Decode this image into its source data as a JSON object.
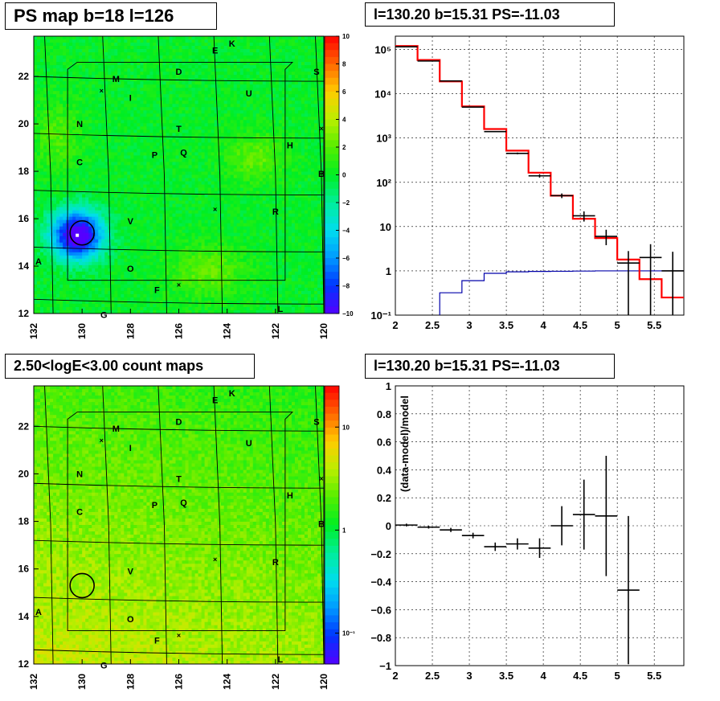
{
  "panels": {
    "ps_map": {
      "title": "PS map b=18 l=126",
      "xlim": [
        132,
        120
      ],
      "ylim": [
        12,
        23.7
      ],
      "x_ticks": [
        "132",
        "130",
        "128",
        "126",
        "124",
        "122",
        "120"
      ],
      "y_ticks": [
        "12",
        "14",
        "16",
        "18",
        "20",
        "22"
      ],
      "colorbar": {
        "ticks": [
          "10",
          "8",
          "6",
          "4",
          "2",
          "0",
          "−2",
          "−4",
          "−6",
          "−8",
          "−10"
        ],
        "range": [
          -10,
          10
        ],
        "palette": [
          "#5500ff",
          "#0033ff",
          "#0099ff",
          "#00ddee",
          "#00ee99",
          "#00ee22",
          "#55ee00",
          "#bbee00",
          "#ffcc00",
          "#ff6600",
          "#ff0000"
        ]
      },
      "source_circle": {
        "l": 130.0,
        "b": 15.4
      },
      "source_value": -11.03
    },
    "count_map": {
      "title": "2.50<logE<3.00 count maps",
      "xlim": [
        132,
        120
      ],
      "ylim": [
        12,
        23.7
      ],
      "x_ticks": [
        "132",
        "130",
        "128",
        "126",
        "124",
        "122",
        "120"
      ],
      "y_ticks": [
        "12",
        "14",
        "16",
        "18",
        "20",
        "22"
      ],
      "colorbar": {
        "ticks": [
          "10",
          "1",
          "10⁻¹"
        ],
        "log_range": [
          -1.3,
          1.4
        ],
        "palette": [
          "#5500ff",
          "#0033ff",
          "#0099ff",
          "#00ddee",
          "#00ee99",
          "#00ee22",
          "#55ee00",
          "#bbee00",
          "#ffcc00",
          "#ff6600",
          "#ff0000"
        ]
      },
      "source_circle": {
        "l": 130.0,
        "b": 15.3
      }
    },
    "spectrum": {
      "title": "l=130.20 b=15.31 PS=-11.03",
      "x_ticks": [
        "2",
        "2.5",
        "3",
        "3.5",
        "4",
        "4.5",
        "5",
        "5.5"
      ],
      "y_ticks": [
        "10⁻¹",
        "1",
        "10",
        "10²",
        "10³",
        "10⁴",
        "10⁵"
      ]
    },
    "residual": {
      "title": "l=130.20 b=15.31 PS=-11.03",
      "ylabel": "(data-model)/model",
      "x_ticks": [
        "2",
        "2.5",
        "3",
        "3.5",
        "4",
        "4.5",
        "5",
        "5.5"
      ],
      "y_ticks": [
        "1",
        "0.8",
        "0.6",
        "0.4",
        "0.2",
        "0",
        "−0.2",
        "−0.4",
        "−0.6",
        "−0.8",
        "−1"
      ]
    }
  },
  "sky_labels": [
    {
      "t": "K",
      "l": 123.8,
      "b": 23.4
    },
    {
      "t": "E",
      "l": 124.5,
      "b": 23.1
    },
    {
      "t": "S",
      "l": 120.3,
      "b": 22.2
    },
    {
      "t": "D",
      "l": 126.0,
      "b": 22.2
    },
    {
      "t": "M",
      "l": 128.6,
      "b": 21.9
    },
    {
      "t": "U",
      "l": 123.1,
      "b": 21.3
    },
    {
      "t": "I",
      "l": 128.0,
      "b": 21.1
    },
    {
      "t": "N",
      "l": 130.1,
      "b": 20.0
    },
    {
      "t": "T",
      "l": 126.0,
      "b": 19.8
    },
    {
      "t": "H",
      "l": 121.4,
      "b": 19.1
    },
    {
      "t": "P",
      "l": 127.0,
      "b": 18.7
    },
    {
      "t": "Q",
      "l": 125.8,
      "b": 18.8
    },
    {
      "t": "C",
      "l": 130.1,
      "b": 18.4
    },
    {
      "t": "B",
      "l": 120.1,
      "b": 17.9
    },
    {
      "t": "R",
      "l": 122.0,
      "b": 16.3
    },
    {
      "t": "V",
      "l": 128.0,
      "b": 15.9
    },
    {
      "t": "A",
      "l": 131.8,
      "b": 14.2
    },
    {
      "t": "O",
      "l": 128.0,
      "b": 13.9
    },
    {
      "t": "F",
      "l": 126.9,
      "b": 13.0
    },
    {
      "t": "L",
      "l": 121.8,
      "b": 12.2
    },
    {
      "t": "G",
      "l": 129.1,
      "b": 11.95
    }
  ],
  "sky_crosses": [
    {
      "l": 129.2,
      "b": 21.4
    },
    {
      "l": 124.5,
      "b": 16.4
    },
    {
      "l": 126.0,
      "b": 13.2
    },
    {
      "l": 120.1,
      "b": 19.8
    }
  ],
  "chart_data": [
    {
      "type": "heatmap",
      "title": "PS map b=18 l=126",
      "xlim": [
        132,
        120
      ],
      "ylim": [
        12,
        23.7
      ],
      "zlim": [
        -10,
        10
      ],
      "features": [
        {
          "l": 130.2,
          "b": 15.31,
          "value": -11.03
        },
        {
          "l": 124.8,
          "b": 13.8,
          "value": 2.5
        },
        {
          "l": 123.0,
          "b": 18.5,
          "value": 2.5
        },
        {
          "l": 131.0,
          "b": 19.5,
          "value": 2.0
        }
      ],
      "background_value": 0
    },
    {
      "type": "heatmap",
      "title": "2.50<logE<3.00 count maps",
      "xlim": [
        132,
        120
      ],
      "ylim": [
        12,
        23.7
      ],
      "zlim_log10": [
        -1.3,
        1.4
      ],
      "trend": "counts increase toward lower b and higher l"
    },
    {
      "type": "line",
      "title": "l=130.20 b=15.31 PS=-11.03",
      "xlim": [
        2,
        5.9
      ],
      "ylim": [
        0.1,
        200000
      ],
      "yscale": "log",
      "grid": true,
      "series": [
        {
          "color": "#ff0000",
          "bin_edges": [
            2.0,
            2.3,
            2.6,
            2.9,
            3.2,
            3.5,
            3.8,
            4.1,
            4.4,
            4.7,
            5.0,
            5.3,
            5.6,
            5.9
          ],
          "values": [
            120000,
            58000,
            19000,
            5200,
            1600,
            520,
            165,
            50,
            15,
            5.5,
            1.8,
            0.65,
            0.25
          ]
        },
        {
          "color": "#0000aa",
          "bin_edges": [
            2.6,
            2.9,
            3.2,
            3.5,
            3.8,
            4.1,
            4.4,
            4.7,
            5.0,
            5.3,
            5.6,
            5.9
          ],
          "values": [
            0.32,
            0.6,
            0.88,
            0.95,
            0.97,
            0.98,
            0.99,
            1.0,
            1.0,
            1.0,
            1.0
          ]
        },
        {
          "color": "#000000",
          "x": [
            2.15,
            2.45,
            2.75,
            3.05,
            3.35,
            3.65,
            3.95,
            4.25,
            4.55,
            4.85,
            5.15,
            5.45,
            5.75
          ],
          "y": [
            115000,
            55000,
            19500,
            5000,
            1400,
            450,
            140,
            50,
            17.5,
            6,
            1.5,
            2,
            1
          ],
          "y_low": [
            112000,
            54000,
            19200,
            4920,
            1360,
            430,
            128,
            44,
            13,
            3.8,
            0.1,
            0.1,
            0.1
          ],
          "y_high": [
            118000,
            56000,
            19800,
            5080,
            1440,
            470,
            152,
            56,
            22,
            8.5,
            2.8,
            4,
            2.7
          ]
        }
      ]
    },
    {
      "type": "scatter",
      "title": "l=130.20 b=15.31 PS=-11.03",
      "ylabel": "(data-model)/model",
      "xlim": [
        2,
        5.9
      ],
      "ylim": [
        -1,
        1
      ],
      "grid": true,
      "points": [
        {
          "x": 2.15,
          "y": 0.005,
          "yerr": 0.01
        },
        {
          "x": 2.45,
          "y": -0.01,
          "yerr": 0.01
        },
        {
          "x": 2.75,
          "y": -0.03,
          "yerr": 0.015
        },
        {
          "x": 3.05,
          "y": -0.07,
          "yerr": 0.02
        },
        {
          "x": 3.35,
          "y": -0.15,
          "yerr": 0.03
        },
        {
          "x": 3.65,
          "y": -0.13,
          "yerr": 0.04
        },
        {
          "x": 3.95,
          "y": -0.16,
          "yerr": 0.07
        },
        {
          "x": 4.25,
          "y": 0.0,
          "yerr": 0.14
        },
        {
          "x": 4.55,
          "y": 0.08,
          "yerr": 0.25
        },
        {
          "x": 4.85,
          "y": 0.07,
          "yerr": 0.43
        },
        {
          "x": 5.15,
          "y": -0.46,
          "yerr": 0.53
        }
      ]
    }
  ]
}
